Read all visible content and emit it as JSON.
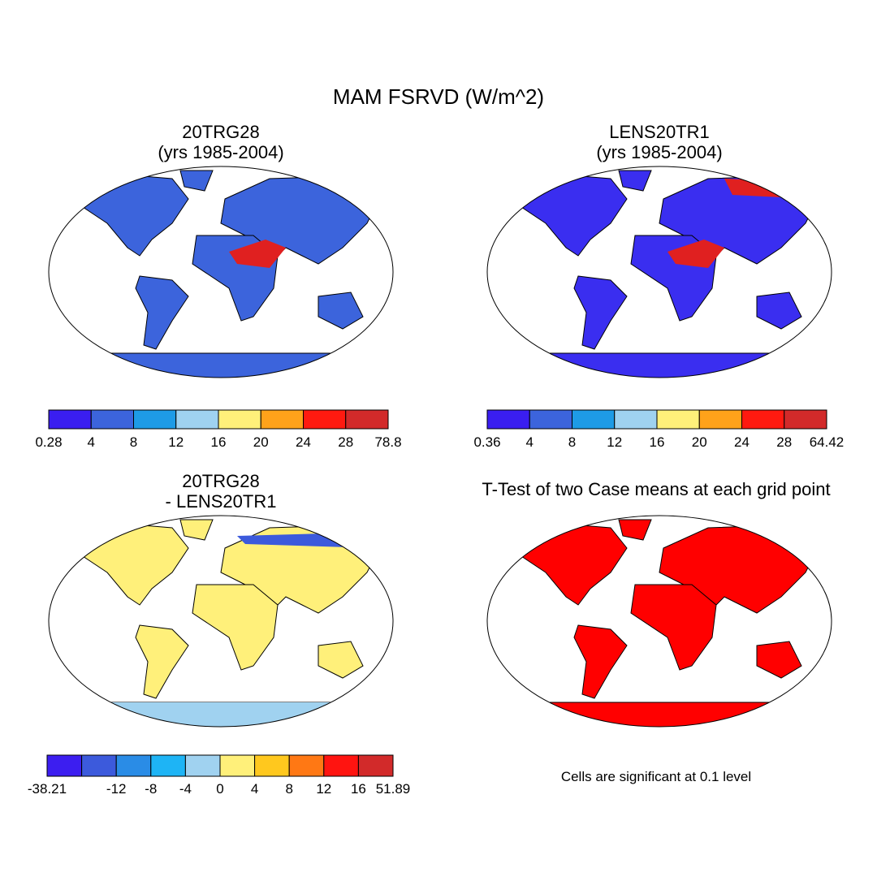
{
  "title": "MAM FSRVD (W/m^2)",
  "panels": [
    {
      "title": "20TRG28",
      "subtitle": "(yrs 1985-2004)"
    },
    {
      "title": "LENS20TR1",
      "subtitle": "(yrs 1985-2004)"
    },
    {
      "title": "20TRG28",
      "subtitle": "- LENS20TR1"
    },
    {
      "title": "T-Test of two Case means at each grid point"
    }
  ],
  "colorbars": [
    {
      "colors": [
        "#3a1ef0",
        "#3c64dc",
        "#1e9be6",
        "#9fd2f0",
        "#fff07a",
        "#ffa21a",
        "#ff1a10",
        "#d22a2a"
      ],
      "labels": [
        0.28,
        4,
        8,
        12,
        16,
        20,
        24,
        28,
        78.8
      ]
    },
    {
      "colors": [
        "#3a1ef0",
        "#3c64dc",
        "#1e9be6",
        "#9fd2f0",
        "#fff07a",
        "#ffa21a",
        "#ff1a10",
        "#d22a2a"
      ],
      "labels": [
        0.36,
        4,
        8,
        12,
        16,
        20,
        24,
        28,
        64.42
      ]
    },
    {
      "colors": [
        "#3c1ef0",
        "#3c5adc",
        "#2a8ce6",
        "#1eb4f5",
        "#a0d2f0",
        "#fff07a",
        "#ffc81e",
        "#ff7814",
        "#ff1410",
        "#d22a2a"
      ],
      "labels": [
        -38.21,
        null,
        -12,
        -8,
        -4,
        0,
        4,
        8,
        12,
        16,
        51.89
      ]
    }
  ],
  "note": "Cells are significant at 0.1 level"
}
